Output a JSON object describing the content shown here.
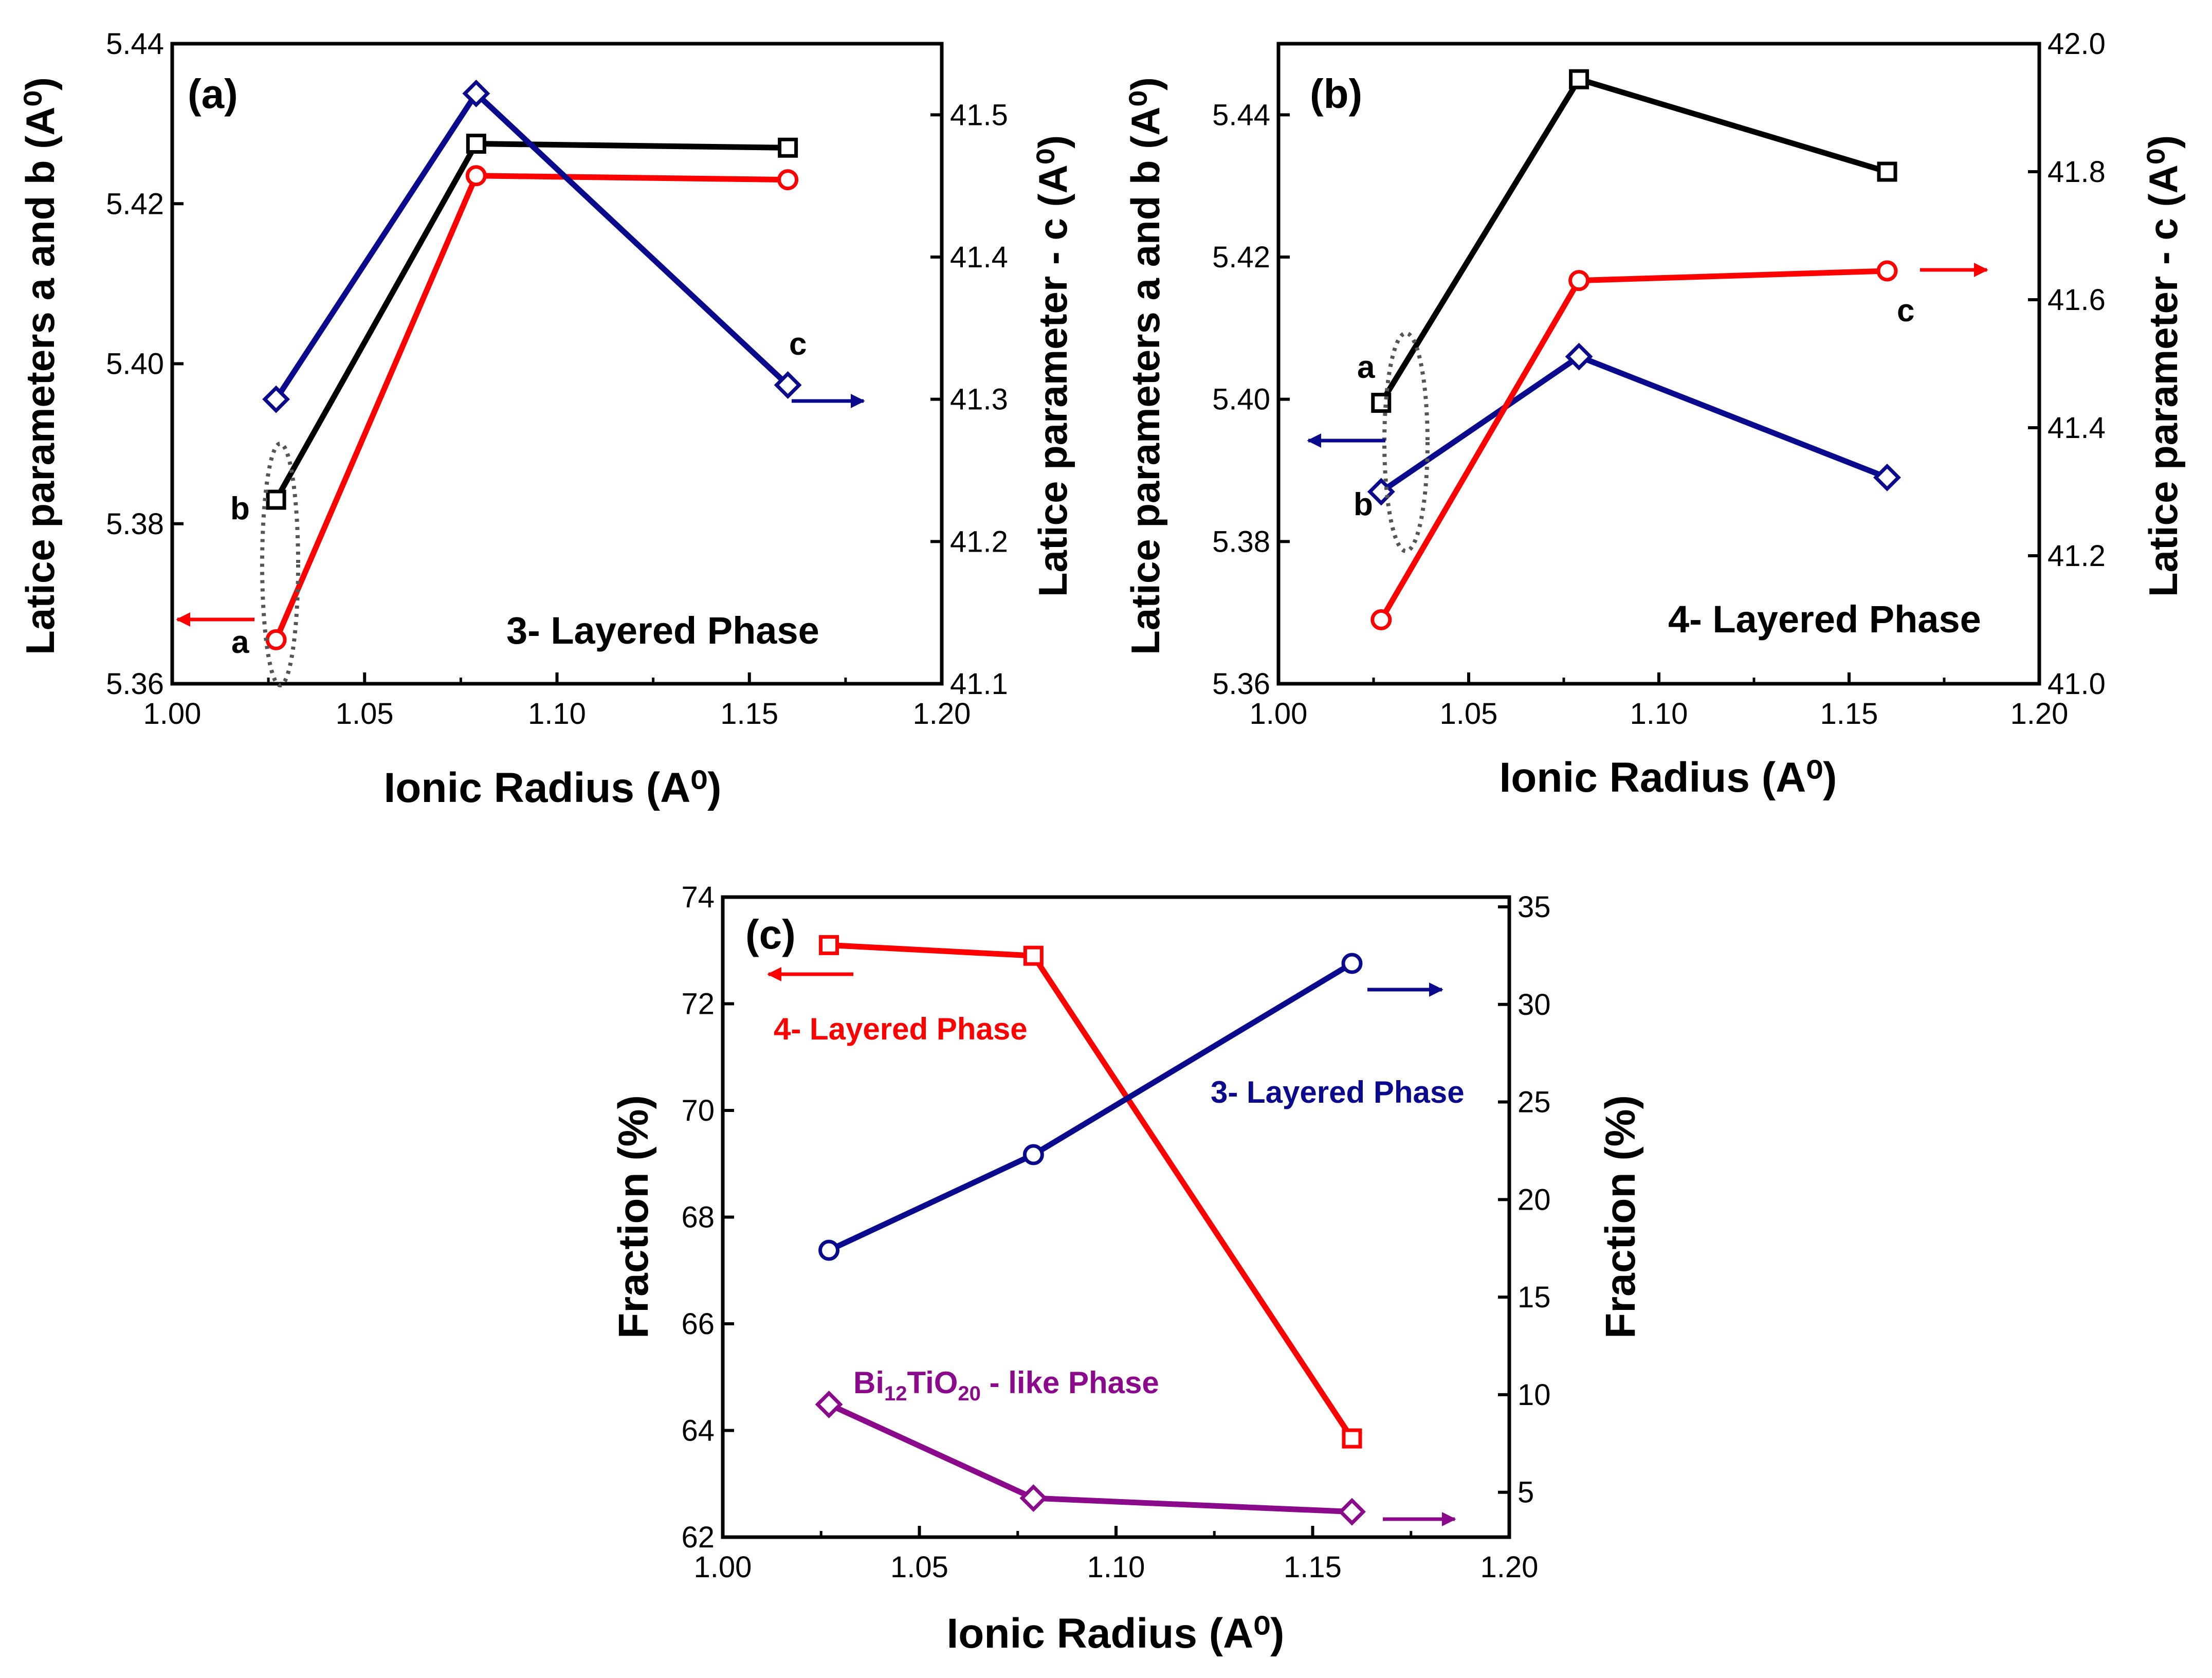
{
  "colors": {
    "black": "#000000",
    "red": "#ff0000",
    "blue": "#0a0a8c",
    "purple": "#8b0a8b",
    "ellipse": "#555555"
  },
  "chart_data": [
    {
      "id": "a",
      "type": "line",
      "panel_label": "(a)",
      "xlabel": "Ionic Radius (A⁰)",
      "ylabel": "Latice parameters a and b (A⁰)",
      "y2label": "Latice parameter - c (A⁰)",
      "xlim": [
        1.0,
        1.2
      ],
      "ylim": [
        5.36,
        5.44
      ],
      "y2lim": [
        41.1,
        41.55
      ],
      "xticks": [
        "1.00",
        "1.05",
        "1.10",
        "1.15",
        "1.20"
      ],
      "yticks": [
        "5.36",
        "5.38",
        "5.40",
        "5.42",
        "5.44"
      ],
      "y2ticks": [
        "41.1",
        "41.2",
        "41.3",
        "41.4",
        "41.5"
      ],
      "annotation": "3- Layered Phase",
      "series": [
        {
          "name": "a",
          "axis": "left",
          "color": "red",
          "marker": "circle",
          "x": [
            1.027,
            1.079,
            1.16
          ],
          "values": [
            5.3655,
            5.4235,
            5.423
          ]
        },
        {
          "name": "b",
          "axis": "left",
          "color": "black",
          "marker": "square",
          "x": [
            1.027,
            1.079,
            1.16
          ],
          "values": [
            5.383,
            5.4275,
            5.427
          ]
        },
        {
          "name": "c",
          "axis": "right",
          "color": "blue",
          "marker": "diamond",
          "x": [
            1.027,
            1.079,
            1.16
          ],
          "values": [
            41.3,
            41.515,
            41.31
          ]
        }
      ]
    },
    {
      "id": "b",
      "type": "line",
      "panel_label": "(b)",
      "xlabel": "Ionic Radius (A⁰)",
      "ylabel": "Latice parameters a and b (A⁰)",
      "y2label": "Latice parameter - c (A⁰)",
      "xlim": [
        1.0,
        1.2
      ],
      "ylim": [
        5.36,
        5.45
      ],
      "y2lim": [
        41.0,
        42.0
      ],
      "xticks": [
        "1.00",
        "1.05",
        "1.10",
        "1.15",
        "1.20"
      ],
      "yticks": [
        "5.36",
        "5.38",
        "5.40",
        "5.42",
        "5.44"
      ],
      "y2ticks": [
        "41.0",
        "41.2",
        "41.4",
        "41.6",
        "41.8",
        "42.0"
      ],
      "annotation": "4- Layered Phase",
      "series": [
        {
          "name": "a",
          "axis": "left",
          "color": "black",
          "marker": "square",
          "x": [
            1.027,
            1.079,
            1.16
          ],
          "values": [
            5.3995,
            5.445,
            5.432
          ]
        },
        {
          "name": "b",
          "axis": "left",
          "color": "blue",
          "marker": "diamond",
          "x": [
            1.027,
            1.079,
            1.16
          ],
          "values": [
            5.387,
            5.406,
            5.389
          ]
        },
        {
          "name": "c",
          "axis": "right",
          "color": "red",
          "marker": "circle",
          "x": [
            1.027,
            1.079,
            1.16
          ],
          "values": [
            41.1,
            41.63,
            41.645
          ]
        }
      ]
    },
    {
      "id": "c",
      "type": "line",
      "panel_label": "(c)",
      "xlabel": "Ionic Radius (A⁰)",
      "ylabel": "Fraction (%)",
      "y2label": "Fraction (%)",
      "xlim": [
        1.0,
        1.2
      ],
      "ylim": [
        62,
        74
      ],
      "y2lim": [
        2.7,
        35.5
      ],
      "xticks": [
        "1.00",
        "1.05",
        "1.10",
        "1.15",
        "1.20"
      ],
      "yticks": [
        "62",
        "64",
        "66",
        "68",
        "70",
        "72",
        "74"
      ],
      "y2ticks": [
        "5",
        "10",
        "15",
        "20",
        "25",
        "30",
        "35"
      ],
      "series": [
        {
          "name": "4- Layered Phase",
          "axis": "left",
          "color": "red",
          "marker": "square",
          "x": [
            1.027,
            1.079,
            1.16
          ],
          "values": [
            73.1,
            72.9,
            63.85
          ]
        },
        {
          "name": "3- Layered Phase",
          "axis": "right",
          "color": "blue",
          "marker": "circle",
          "x": [
            1.027,
            1.079,
            1.16
          ],
          "values": [
            17.4,
            22.3,
            32.1
          ]
        },
        {
          "name": "Bi12TiO20 - like Phase",
          "axis": "right",
          "color": "purple",
          "marker": "diamond",
          "x": [
            1.027,
            1.079,
            1.16
          ],
          "values": [
            9.5,
            4.7,
            4.0
          ]
        }
      ]
    }
  ],
  "labels": {
    "a_point_a": "a",
    "a_point_b": "b",
    "a_point_c": "c",
    "b_point_a": "a",
    "b_point_b": "b",
    "b_point_c": "c",
    "c_phase4": "4- Layered Phase",
    "c_phase3": "3- Layered Phase",
    "c_bi_main": "Bi",
    "c_bi_sub1": "12",
    "c_bi_mid": "TiO",
    "c_bi_sub2": "20",
    "c_bi_tail": " - like Phase"
  }
}
